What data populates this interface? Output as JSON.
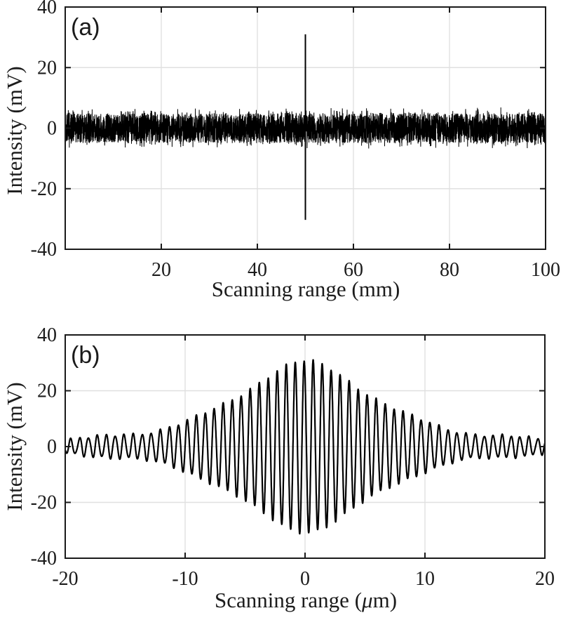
{
  "figure": {
    "background": "#ffffff",
    "description": "Two stacked oscilloscope-style intensity plots"
  },
  "chart_data": [
    {
      "type": "line",
      "panel_label": "(a)",
      "xlabel": "Scanning range (mm)",
      "ylabel": "Intensity (mV)",
      "xlim": [
        0,
        100
      ],
      "ylim": [
        -40,
        40
      ],
      "xticks": [
        20,
        40,
        60,
        80,
        100
      ],
      "yticks": [
        -40,
        -20,
        0,
        20,
        40
      ],
      "grid": true,
      "legend": null,
      "colors": {
        "line": "#000000",
        "grid": "#e0e0e0",
        "axis": "#1a1a1a"
      },
      "series": [
        {
          "name": "noise-floor-trace",
          "kind": "noise",
          "noise_band_mV": 4.9,
          "hair_max_mV": 7.0,
          "rare_spike_max_mV": 9.3,
          "points": 4800,
          "seed": 42,
          "stroke_width": 1
        },
        {
          "name": "interference-fringe-spike",
          "kind": "vertical-spike",
          "x": 50,
          "y_top": 31,
          "y_bottom": -30.3,
          "stroke_width": 2
        }
      ]
    },
    {
      "type": "line",
      "panel_label": "(b)",
      "xlabel": "Scanning range (μm)",
      "xlabel_parts": [
        {
          "text": "Scanning range (",
          "italic": false
        },
        {
          "text": "μ",
          "italic": true
        },
        {
          "text": "m)",
          "italic": false
        }
      ],
      "ylabel": "Intensity (mV)",
      "xlim": [
        -20,
        20
      ],
      "ylim": [
        -40,
        40
      ],
      "xticks": [
        -20,
        -10,
        0,
        10,
        20
      ],
      "yticks": [
        -40,
        -20,
        0,
        20,
        40
      ],
      "grid": true,
      "legend": null,
      "colors": {
        "line": "#000000",
        "grid": "#e0e0e0",
        "axis": "#1a1a1a"
      },
      "series": [
        {
          "name": "interferogram-fringe-packet",
          "kind": "interferogram",
          "envelope": "sech",
          "envelope_peak_mV": 28.8,
          "envelope_width_um": 4.9,
          "envelope_floor_mV": 1.5,
          "carrier_period_um": 0.75,
          "carrier_phase_rad": 0.6,
          "residual_ripple_mV": 1.2,
          "points": 5600,
          "stroke_width": 2.2
        }
      ]
    }
  ]
}
